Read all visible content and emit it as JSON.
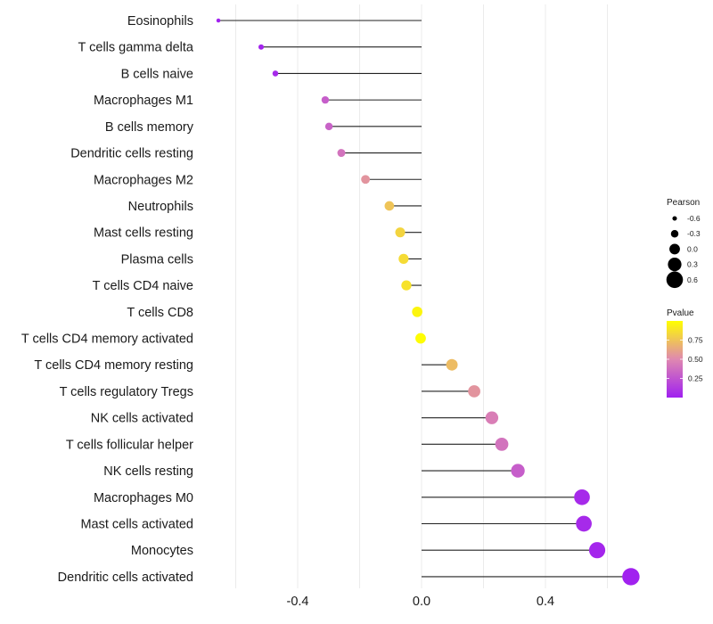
{
  "chart_data": {
    "type": "lollipop",
    "title": "",
    "xlabel": "",
    "ylabel": "",
    "xlim": [
      -0.72,
      0.76
    ],
    "x_ticks": [
      -0.4,
      0.0,
      0.4
    ],
    "x_tick_labels": [
      "-0.4",
      "0.0",
      "0.4"
    ],
    "minor_gridlines": [
      -0.6,
      -0.2,
      0.2,
      0.6
    ],
    "grid": true,
    "categories": [
      "Eosinophils",
      "T cells gamma delta",
      "B cells naive",
      "Macrophages M1",
      "B cells memory",
      "Dendritic cells resting",
      "Macrophages M2",
      "Neutrophils",
      "Mast cells resting",
      "Plasma cells",
      "T cells CD4 naive",
      "T cells CD8",
      "T cells CD4 memory activated",
      "T cells CD4 memory resting",
      "T cells regulatory  Tregs ",
      "NK cells activated",
      "T cells follicular helper",
      "NK cells resting",
      "Macrophages M0",
      "Mast cells activated",
      "Monocytes",
      "Dendritic cells activated"
    ],
    "series": [
      {
        "name": "Pearson",
        "values": [
          -0.656,
          -0.518,
          -0.472,
          -0.311,
          -0.299,
          -0.259,
          -0.181,
          -0.104,
          -0.069,
          -0.058,
          -0.049,
          -0.014,
          -0.003,
          0.098,
          0.17,
          0.227,
          0.259,
          0.311,
          0.518,
          0.524,
          0.567,
          0.676
        ]
      },
      {
        "name": "Pvalue",
        "values": [
          0.01,
          0.02,
          0.05,
          0.3,
          0.32,
          0.4,
          0.55,
          0.75,
          0.82,
          0.85,
          0.88,
          0.96,
          0.99,
          0.72,
          0.55,
          0.45,
          0.4,
          0.3,
          0.05,
          0.05,
          0.03,
          0.01
        ]
      }
    ],
    "legend": {
      "position": "right",
      "size_legend": {
        "title": "Pearson",
        "entries": [
          "-0.6",
          "-0.3",
          "0.0",
          "0.3",
          "0.6"
        ],
        "values": [
          -0.6,
          -0.3,
          0.0,
          0.3,
          0.6
        ]
      },
      "color_legend": {
        "title": "Pvalue",
        "tick_labels": [
          "0.75",
          "0.50",
          "0.25"
        ],
        "ticks": [
          0.75,
          0.5,
          0.25
        ],
        "range": [
          0.0,
          1.0
        ],
        "color_low": "#a020f0",
        "color_mid": "#df88b0",
        "color_high": "#ffff00"
      }
    }
  }
}
